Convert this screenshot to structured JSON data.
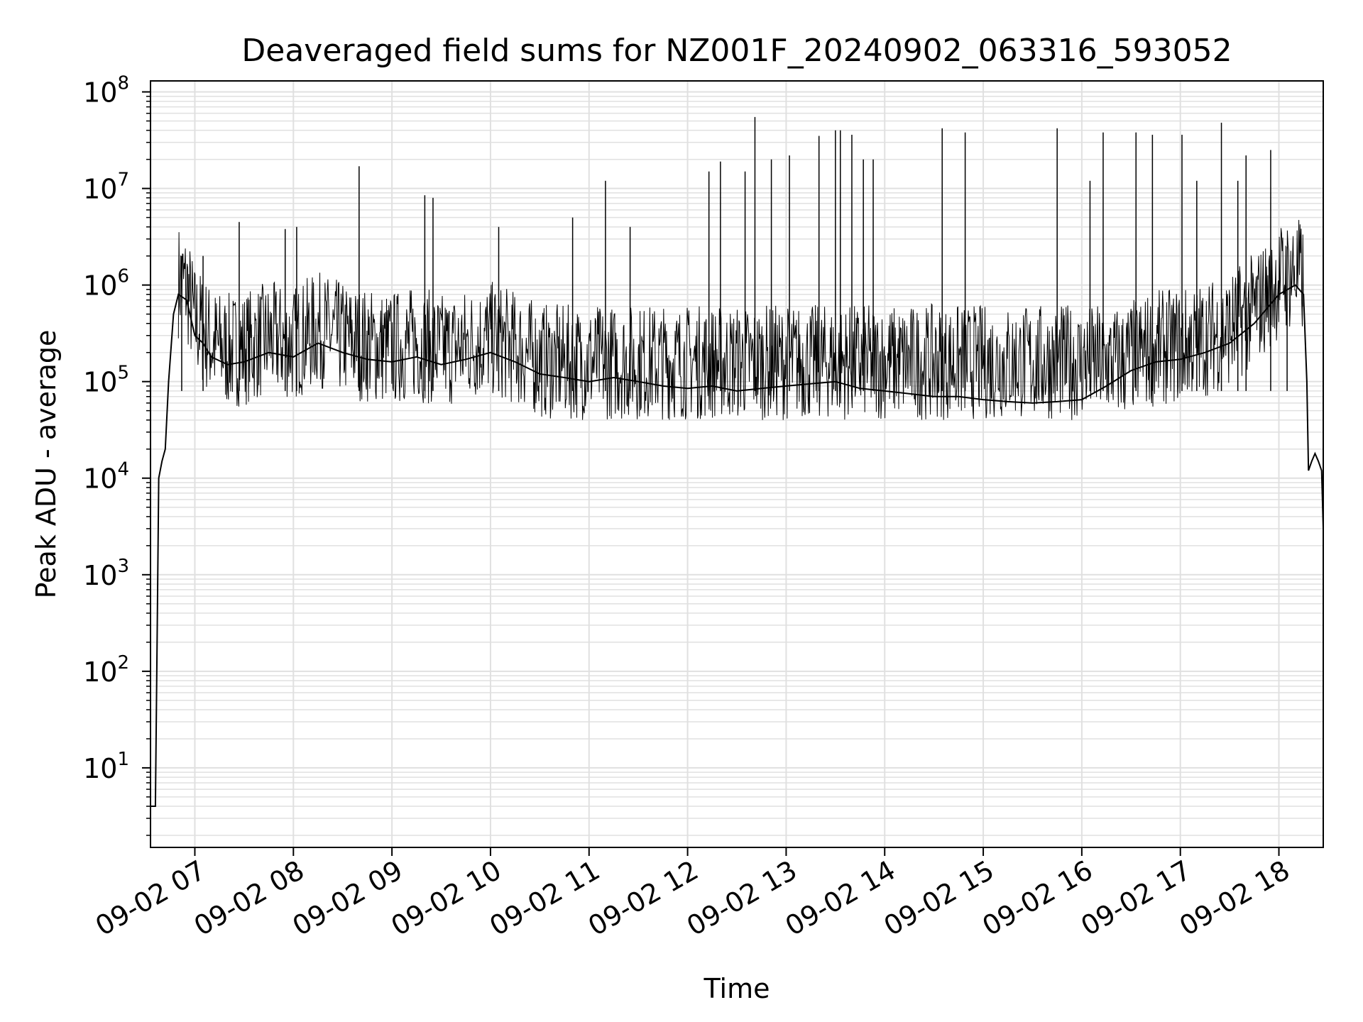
{
  "chart_data": {
    "type": "line",
    "title": "Deaveraged field sums for NZ001F_20240902_063316_593052",
    "xlabel": "Time",
    "ylabel": "Peak ADU - average",
    "yscale": "log",
    "ylim": [
      1.5,
      130000000
    ],
    "xlim": [
      "09-02 06:33",
      "09-02 18:27"
    ],
    "grid": true,
    "line_color": "#000000",
    "grid_color": "#e0e0e0",
    "x_ticks": [
      "09-02 07",
      "09-02 08",
      "09-02 09",
      "09-02 10",
      "09-02 11",
      "09-02 12",
      "09-02 13",
      "09-02 14",
      "09-02 15",
      "09-02 16",
      "09-02 17",
      "09-02 18"
    ],
    "y_ticks": [
      {
        "base": "10",
        "exp": "1",
        "value": 10
      },
      {
        "base": "10",
        "exp": "2",
        "value": 100
      },
      {
        "base": "10",
        "exp": "3",
        "value": 1000
      },
      {
        "base": "10",
        "exp": "4",
        "value": 10000
      },
      {
        "base": "10",
        "exp": "5",
        "value": 100000
      },
      {
        "base": "10",
        "exp": "6",
        "value": 1000000
      },
      {
        "base": "10",
        "exp": "7",
        "value": 10000000
      },
      {
        "base": "10",
        "exp": "8",
        "value": 100000000
      }
    ],
    "series": [
      {
        "x": [
          "09-02 06:33",
          "09-02 06:35",
          "09-02 06:36",
          "09-02 06:37",
          "09-02 06:38",
          "09-02 06:40",
          "09-02 06:42",
          "09-02 06:44",
          "09-02 06:47",
          "09-02 06:50",
          "09-02 06:55",
          "09-02 07:00",
          "09-02 07:05",
          "09-02 07:10",
          "09-02 07:20",
          "09-02 07:30",
          "09-02 07:45",
          "09-02 08:00",
          "09-02 08:15",
          "09-02 08:30",
          "09-02 08:45",
          "09-02 09:00",
          "09-02 09:15",
          "09-02 09:30",
          "09-02 09:45",
          "09-02 10:00",
          "09-02 10:15",
          "09-02 10:30",
          "09-02 10:45",
          "09-02 11:00",
          "09-02 11:15",
          "09-02 11:30",
          "09-02 11:45",
          "09-02 12:00",
          "09-02 12:15",
          "09-02 12:30",
          "09-02 12:45",
          "09-02 13:00",
          "09-02 13:15",
          "09-02 13:30",
          "09-02 13:45",
          "09-02 14:00",
          "09-02 14:15",
          "09-02 14:30",
          "09-02 14:45",
          "09-02 15:00",
          "09-02 15:15",
          "09-02 15:30",
          "09-02 15:45",
          "09-02 16:00",
          "09-02 16:15",
          "09-02 16:30",
          "09-02 16:45",
          "09-02 17:00",
          "09-02 17:15",
          "09-02 17:30",
          "09-02 17:45",
          "09-02 18:00",
          "09-02 18:10",
          "09-02 18:15",
          "09-02 18:17",
          "09-02 18:18",
          "09-02 18:20",
          "09-02 18:22",
          "09-02 18:24",
          "09-02 18:26",
          "09-02 18:27"
        ],
        "values": [
          4,
          4,
          4,
          200,
          10000,
          15000,
          20000,
          100000,
          500000,
          800000,
          700000,
          300000,
          250000,
          180000,
          150000,
          160000,
          200000,
          180000,
          250000,
          200000,
          170000,
          160000,
          180000,
          150000,
          170000,
          200000,
          160000,
          120000,
          110000,
          100000,
          110000,
          100000,
          90000,
          85000,
          90000,
          80000,
          85000,
          90000,
          95000,
          100000,
          85000,
          80000,
          75000,
          70000,
          70000,
          65000,
          62000,
          60000,
          62000,
          65000,
          90000,
          130000,
          160000,
          170000,
          200000,
          250000,
          400000,
          800000,
          1000000,
          800000,
          100000,
          12000,
          15000,
          18000,
          15000,
          12000,
          3000
        ]
      }
    ],
    "spikes": {
      "x": [
        "09-02 06:52",
        "09-02 07:05",
        "09-02 07:27",
        "09-02 07:55",
        "09-02 08:02",
        "09-02 08:40",
        "09-02 09:20",
        "09-02 09:25",
        "09-02 10:05",
        "09-02 10:50",
        "09-02 11:10",
        "09-02 11:25",
        "09-02 12:13",
        "09-02 12:20",
        "09-02 12:35",
        "09-02 12:41",
        "09-02 12:51",
        "09-02 13:02",
        "09-02 13:20",
        "09-02 13:30",
        "09-02 13:33",
        "09-02 13:40",
        "09-02 13:47",
        "09-02 13:53",
        "09-02 14:35",
        "09-02 14:49",
        "09-02 15:45",
        "09-02 16:05",
        "09-02 16:13",
        "09-02 16:33",
        "09-02 16:43",
        "09-02 17:01",
        "09-02 17:10",
        "09-02 17:25",
        "09-02 17:35",
        "09-02 17:40",
        "09-02 17:55",
        "09-02 18:05"
      ],
      "values": [
        2000000,
        2000000,
        4500000,
        3800000,
        4000000,
        17000000,
        8500000,
        8000000,
        4000000,
        5000000,
        12000000,
        4000000,
        15000000,
        19000000,
        15000000,
        55000000,
        20000000,
        22000000,
        35000000,
        40000000,
        40000000,
        36000000,
        20000000,
        20000000,
        42000000,
        38000000,
        42000000,
        12000000,
        38000000,
        38000000,
        36000000,
        36000000,
        12000000,
        48000000,
        12000000,
        22000000,
        25000000,
        2500000
      ]
    }
  }
}
